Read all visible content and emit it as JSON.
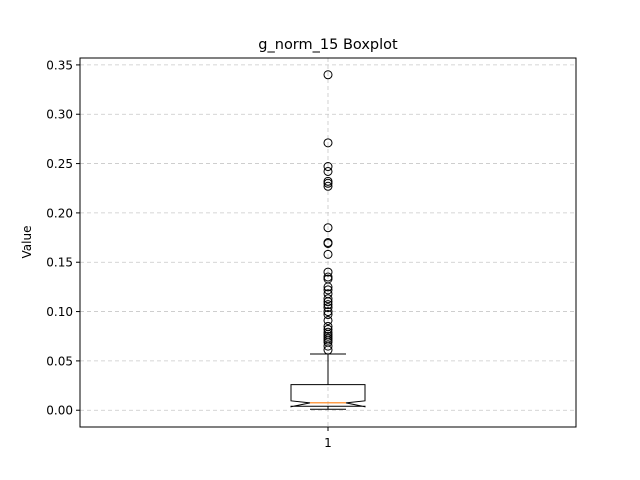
{
  "chart_data": {
    "type": "boxplot",
    "title": "g_norm_15 Boxplot",
    "xlabel": "",
    "ylabel": "Value",
    "categories": [
      "1"
    ],
    "ylim": [
      -0.017,
      0.357
    ],
    "yticks": [
      0.0,
      0.05,
      0.1,
      0.15,
      0.2,
      0.25,
      0.3,
      0.35
    ],
    "ytick_labels": [
      "0.00",
      "0.05",
      "0.10",
      "0.15",
      "0.20",
      "0.25",
      "0.30",
      "0.35"
    ],
    "grid": true,
    "notch": true,
    "box": {
      "whisker_low": 0.001,
      "q1": 0.004,
      "notch_low": 0.0035,
      "median": 0.0075,
      "notch_high": 0.0095,
      "q3": 0.026,
      "whisker_high": 0.057
    },
    "outliers": [
      0.34,
      0.271,
      0.247,
      0.242,
      0.232,
      0.23,
      0.227,
      0.185,
      0.17,
      0.169,
      0.158,
      0.14,
      0.135,
      0.133,
      0.125,
      0.122,
      0.118,
      0.113,
      0.11,
      0.107,
      0.104,
      0.1,
      0.097,
      0.091,
      0.085,
      0.082,
      0.079,
      0.077,
      0.075,
      0.073,
      0.071,
      0.069,
      0.065,
      0.061
    ],
    "colors": {
      "box": "#000000",
      "median": "#ff7f0e",
      "grid": "#c8c8c8"
    }
  }
}
